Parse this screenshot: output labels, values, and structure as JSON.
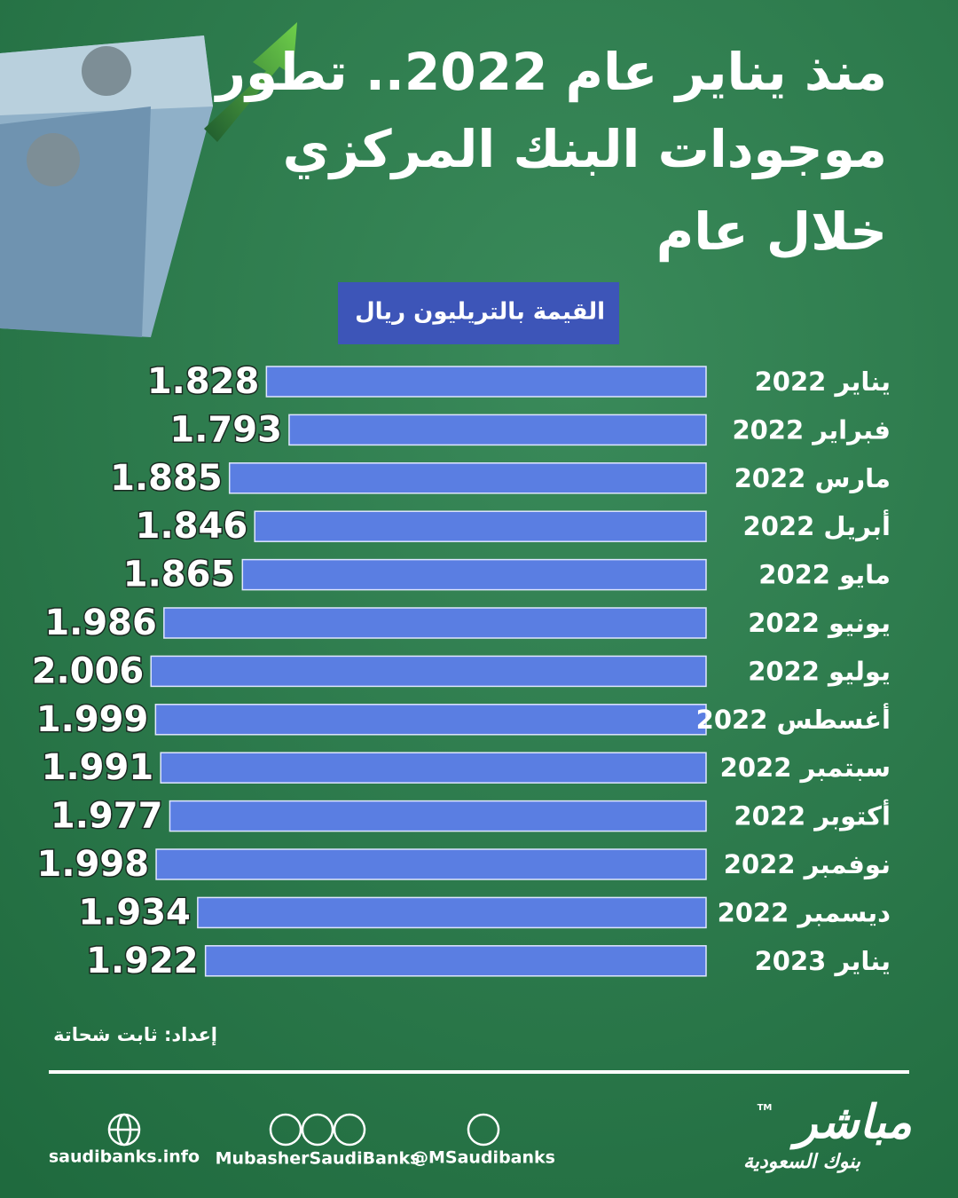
{
  "chart_data": {
    "type": "bar",
    "title": [
      "منذ يناير عام 2022.. تطور",
      "موجودات البنك المركزي",
      "خلال عام"
    ],
    "subtitle": "القيمة بالتريليون ريال",
    "categories": [
      "يناير 2022",
      "فبراير 2022",
      "مارس 2022",
      "أبريل 2022",
      "مايو 2022",
      "يونيو 2022",
      "يوليو 2022",
      "أغسطس 2022",
      "سبتمبر 2022",
      "أكتوبر 2022",
      "نوفمبر 2022",
      "ديسمبر 2022",
      "يناير 2023"
    ],
    "values": [
      1.828,
      1.793,
      1.885,
      1.846,
      1.865,
      1.986,
      2.006,
      1.999,
      1.991,
      1.977,
      1.998,
      1.934,
      1.922
    ],
    "value_labels": [
      "1.828",
      "1.793",
      "1.885",
      "1.846",
      "1.865",
      "1.986",
      "2.006",
      "1.999",
      "1.991",
      "1.977",
      "1.998",
      "1.934",
      "1.922"
    ],
    "color": "#5a7ee2",
    "xlim": [
      1.15,
      2.02
    ],
    "credit": "إعداد: ثابت شحاتة"
  },
  "footer": {
    "website": "saudibanks.info",
    "social": "MubasherSaudiBanks",
    "twitter": "@MSaudibanks",
    "logo": "مباشر",
    "logo_sub": "بنوك السعودية",
    "trademark": "TM"
  }
}
